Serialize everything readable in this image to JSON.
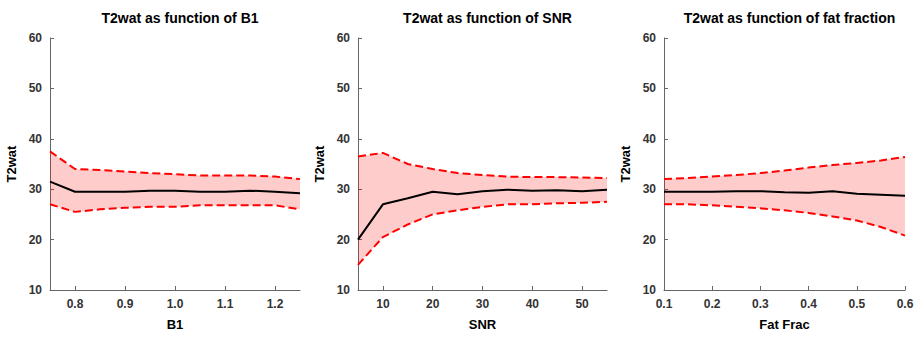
{
  "chart_data": [
    {
      "type": "line",
      "title": "T2wat as function of B1",
      "x_label": "B1",
      "y_label": "T2wat",
      "x": [
        0.75,
        0.8,
        0.85,
        0.9,
        0.95,
        1.0,
        1.05,
        1.1,
        1.15,
        1.2,
        1.25
      ],
      "xlim": [
        0.75,
        1.25
      ],
      "xticks": [
        0.8,
        0.9,
        {
          "value": 1,
          "label": "1.0"
        },
        1.1,
        1.2
      ],
      "ylim": [
        10,
        60
      ],
      "yticks": [
        10,
        20,
        30,
        40,
        50,
        60
      ],
      "grid": false,
      "series": [
        {
          "color": "#000000",
          "line_style": "solid",
          "values": [
            31.5,
            29.5,
            29.5,
            29.5,
            29.7,
            29.7,
            29.5,
            29.5,
            29.7,
            29.5,
            29.2
          ]
        }
      ],
      "band": {
        "color": "#ff0000",
        "line_style": "dashed",
        "lower": [
          27,
          25.5,
          26,
          26.3,
          26.5,
          26.5,
          26.8,
          26.8,
          26.8,
          26.8,
          26
        ],
        "upper": [
          37.5,
          34,
          33.8,
          33.5,
          33.2,
          33,
          32.7,
          32.7,
          32.7,
          32.5,
          32
        ]
      }
    },
    {
      "type": "line",
      "title": "T2wat as function of SNR",
      "x_label": "SNR",
      "y_label": "T2wat",
      "x": [
        5,
        10,
        15,
        20,
        25,
        30,
        35,
        40,
        45,
        50,
        55
      ],
      "xlim": [
        5,
        55
      ],
      "xticks": [
        10,
        20,
        30,
        40,
        50
      ],
      "ylim": [
        10,
        60
      ],
      "yticks": [
        10,
        20,
        30,
        40,
        50,
        60
      ],
      "grid": false,
      "series": [
        {
          "color": "#000000",
          "line_style": "solid",
          "values": [
            20,
            27,
            28.2,
            29.5,
            29,
            29.6,
            29.9,
            29.7,
            29.8,
            29.6,
            29.9
          ]
        }
      ],
      "band": {
        "color": "#ff0000",
        "line_style": "dashed",
        "lower": [
          15,
          20.5,
          23,
          25,
          25.8,
          26.5,
          27,
          27,
          27.2,
          27.3,
          27.5
        ],
        "upper": [
          36.5,
          37.2,
          35,
          34,
          33.2,
          32.8,
          32.5,
          32.4,
          32.4,
          32.3,
          32.2
        ]
      }
    },
    {
      "type": "line",
      "title": "T2wat as function of fat fraction",
      "x_label": "Fat Frac",
      "y_label": "T2wat",
      "x": [
        0.1,
        0.15,
        0.2,
        0.25,
        0.3,
        0.35,
        0.4,
        0.45,
        0.5,
        0.55,
        0.6
      ],
      "xlim": [
        0.1,
        0.6
      ],
      "xticks": [
        0.1,
        0.2,
        0.3,
        0.4,
        0.5,
        0.6
      ],
      "ylim": [
        10,
        60
      ],
      "yticks": [
        10,
        20,
        30,
        40,
        50,
        60
      ],
      "grid": false,
      "series": [
        {
          "color": "#000000",
          "line_style": "solid",
          "values": [
            29.5,
            29.5,
            29.5,
            29.6,
            29.6,
            29.4,
            29.3,
            29.6,
            29.1,
            28.9,
            28.7
          ]
        }
      ],
      "band": {
        "color": "#ff0000",
        "line_style": "dashed",
        "lower": [
          27,
          27,
          26.8,
          26.5,
          26.2,
          25.8,
          25.3,
          24.6,
          23.8,
          22.5,
          20.8
        ],
        "upper": [
          32,
          32.2,
          32.5,
          32.8,
          33.2,
          33.7,
          34.3,
          34.8,
          35.2,
          35.7,
          36.4
        ]
      }
    }
  ]
}
